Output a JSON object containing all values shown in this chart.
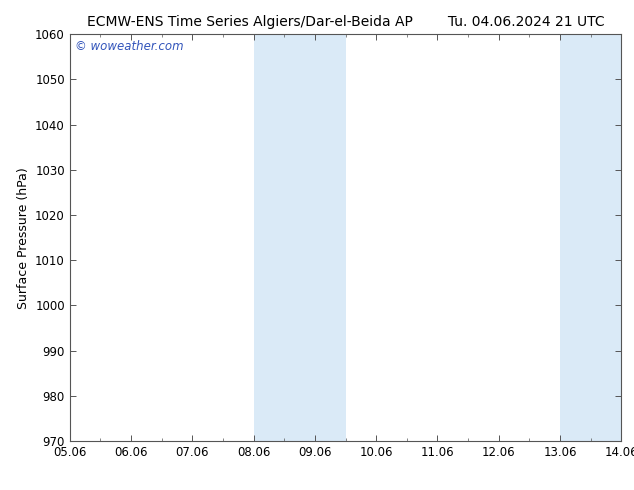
{
  "title_left": "ECMW-ENS Time Series Algiers/Dar-el-Beida AP",
  "title_right": "Tu. 04.06.2024 21 UTC",
  "ylabel": "Surface Pressure (hPa)",
  "ylim": [
    970,
    1060
  ],
  "yticks": [
    970,
    980,
    990,
    1000,
    1010,
    1020,
    1030,
    1040,
    1050,
    1060
  ],
  "xlim": [
    0,
    9
  ],
  "xtick_labels": [
    "05.06",
    "06.06",
    "07.06",
    "08.06",
    "09.06",
    "10.06",
    "11.06",
    "12.06",
    "13.06",
    "14.06"
  ],
  "xtick_positions": [
    0,
    1,
    2,
    3,
    4,
    5,
    6,
    7,
    8,
    9
  ],
  "shaded_bands": [
    {
      "x_start": 3.0,
      "x_end": 4.5
    },
    {
      "x_start": 8.0,
      "x_end": 9.0
    }
  ],
  "shaded_color": "#daeaf7",
  "background_color": "#ffffff",
  "watermark_text": "© woweather.com",
  "watermark_color": "#3355bb",
  "title_fontsize": 10,
  "axis_label_fontsize": 9,
  "tick_fontsize": 8.5,
  "border_color": "#555555",
  "minor_tick_color": "#888888"
}
